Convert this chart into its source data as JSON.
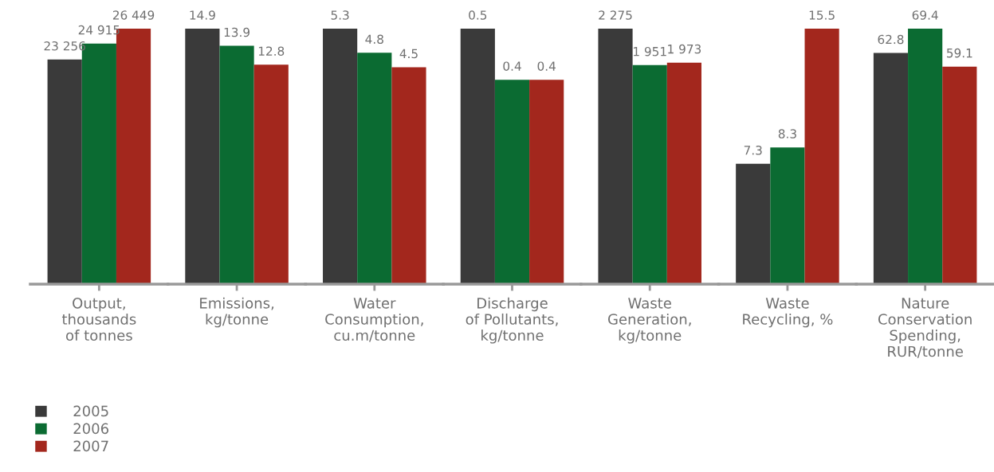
{
  "chart_data": [
    {
      "type": "bar",
      "categories": [
        "Output,\nthousands\nof tonnes"
      ],
      "legend": "bottom left",
      "tick_labels": "x",
      "grid": false,
      "data_labels": true,
      "series": [
        {
          "name": "2005",
          "color": "#3a3a3a",
          "values": [
            23256
          ],
          "value_labels": [
            "23 256"
          ]
        },
        {
          "name": "2006",
          "color": "#0b6b32",
          "values": [
            24915
          ],
          "value_labels": [
            "24 915"
          ]
        },
        {
          "name": "2007",
          "color": "#a3271d",
          "values": [
            26449
          ],
          "value_labels": [
            "26 449"
          ]
        }
      ]
    },
    {
      "type": "bar",
      "categories": [
        "Emissions,\nkg/tonne"
      ],
      "tick_labels": "x",
      "grid": false,
      "data_labels": true,
      "series": [
        {
          "color": "#3a3a3a",
          "values": [
            14.9
          ]
        },
        {
          "color": "#0b6b32",
          "values": [
            13.9
          ]
        },
        {
          "color": "#a3271d",
          "values": [
            12.8
          ]
        }
      ]
    },
    {
      "type": "bar",
      "categories": [
        "Water\nConsumption,\ncu.m/tonne"
      ],
      "tick_labels": "x",
      "grid": false,
      "data_labels": true,
      "series": [
        {
          "color": "#3a3a3a",
          "values": [
            5.3
          ]
        },
        {
          "color": "#0b6b32",
          "values": [
            4.8
          ]
        },
        {
          "color": "#a3271d",
          "values": [
            4.5
          ]
        }
      ]
    },
    {
      "type": "bar",
      "categories": [
        "Discharge\nof Pollutants,\nkg/tonne"
      ],
      "tick_labels": "x",
      "grid": false,
      "data_labels": true,
      "series": [
        {
          "color": "#3a3a3a",
          "values": [
            0.5
          ]
        },
        {
          "color": "#0b6b32",
          "values": [
            0.4
          ]
        },
        {
          "color": "#a3271d",
          "values": [
            0.4
          ]
        }
      ]
    },
    {
      "type": "bar",
      "categories": [
        "Waste\nGeneration,\nkg/tonne"
      ],
      "tick_labels": "x",
      "grid": false,
      "data_labels": true,
      "series": [
        {
          "color": "#3a3a3a",
          "values": [
            2275
          ],
          "value_labels": [
            "2 275"
          ]
        },
        {
          "color": "#0b6b32",
          "values": [
            1951
          ],
          "value_labels": [
            "1 951"
          ]
        },
        {
          "color": "#a3271d",
          "values": [
            1973
          ],
          "value_labels": [
            "1 973"
          ]
        }
      ]
    },
    {
      "type": "bar",
      "categories": [
        "Waste\nRecycling, %"
      ],
      "tick_labels": "x",
      "grid": false,
      "data_labels": true,
      "series": [
        {
          "color": "#3a3a3a",
          "values": [
            7.3
          ]
        },
        {
          "color": "#0b6b32",
          "values": [
            8.3
          ]
        },
        {
          "color": "#a3271d",
          "values": [
            15.5
          ]
        }
      ]
    },
    {
      "type": "bar",
      "categories": [
        "Nature\nConservation\nSpending,\nRUR/tonne"
      ],
      "tick_labels": "x",
      "grid": false,
      "data_labels": true,
      "series": [
        {
          "color": "#3a3a3a",
          "values": [
            62.8
          ]
        },
        {
          "color": "#0b6b32",
          "values": [
            69.4
          ]
        },
        {
          "color": "#a3271d",
          "values": [
            59.1
          ]
        }
      ]
    }
  ]
}
